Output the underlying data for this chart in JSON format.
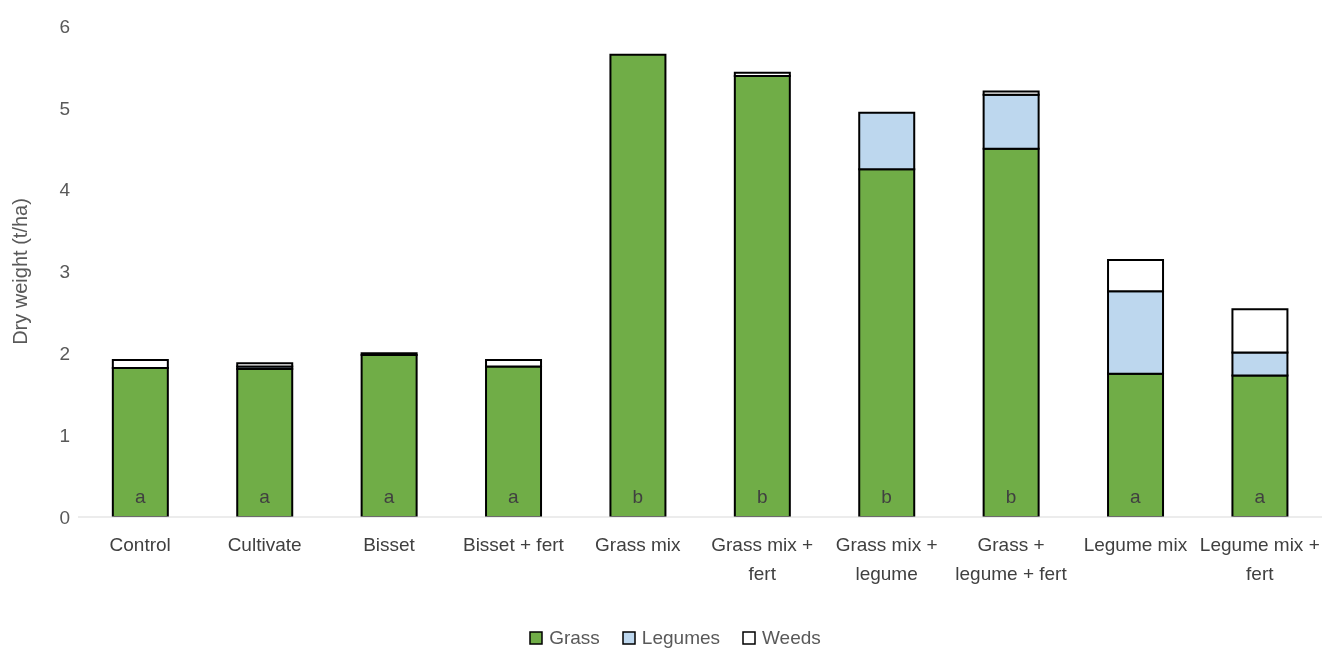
{
  "chart_data": {
    "type": "bar",
    "stacked": true,
    "ylabel": "Dry weight (t/ha)",
    "categories": [
      "Control",
      "Cultivate",
      "Bisset",
      "Bisset + fert",
      "Grass mix",
      "Grass mix + fert",
      "Grass mix + legume",
      "Grass + legume + fert",
      "Legume mix",
      "Legume mix + fert"
    ],
    "series": [
      {
        "name": "Grass",
        "color": "#70ad47",
        "values": [
          1.82,
          1.81,
          1.98,
          1.84,
          5.65,
          5.39,
          4.25,
          4.5,
          1.75,
          1.73
        ]
      },
      {
        "name": "Legumes",
        "color": "#bdd7ee",
        "values": [
          0,
          0.03,
          0,
          0,
          0,
          0,
          0.69,
          0.66,
          1.01,
          0.28
        ]
      },
      {
        "name": "Weeds",
        "color": "#ffffff",
        "values": [
          0.1,
          0.04,
          0.02,
          0.08,
          0,
          0.04,
          0,
          0.04,
          0.38,
          0.53
        ]
      }
    ],
    "ylim": [
      0,
      6
    ],
    "yticks": [
      0,
      1,
      2,
      3,
      4,
      5,
      6
    ],
    "grid": false,
    "legend": "bottom",
    "annotations": [
      "a",
      "a",
      "a",
      "a",
      "b",
      "b",
      "b",
      "b",
      "a",
      "a"
    ]
  }
}
